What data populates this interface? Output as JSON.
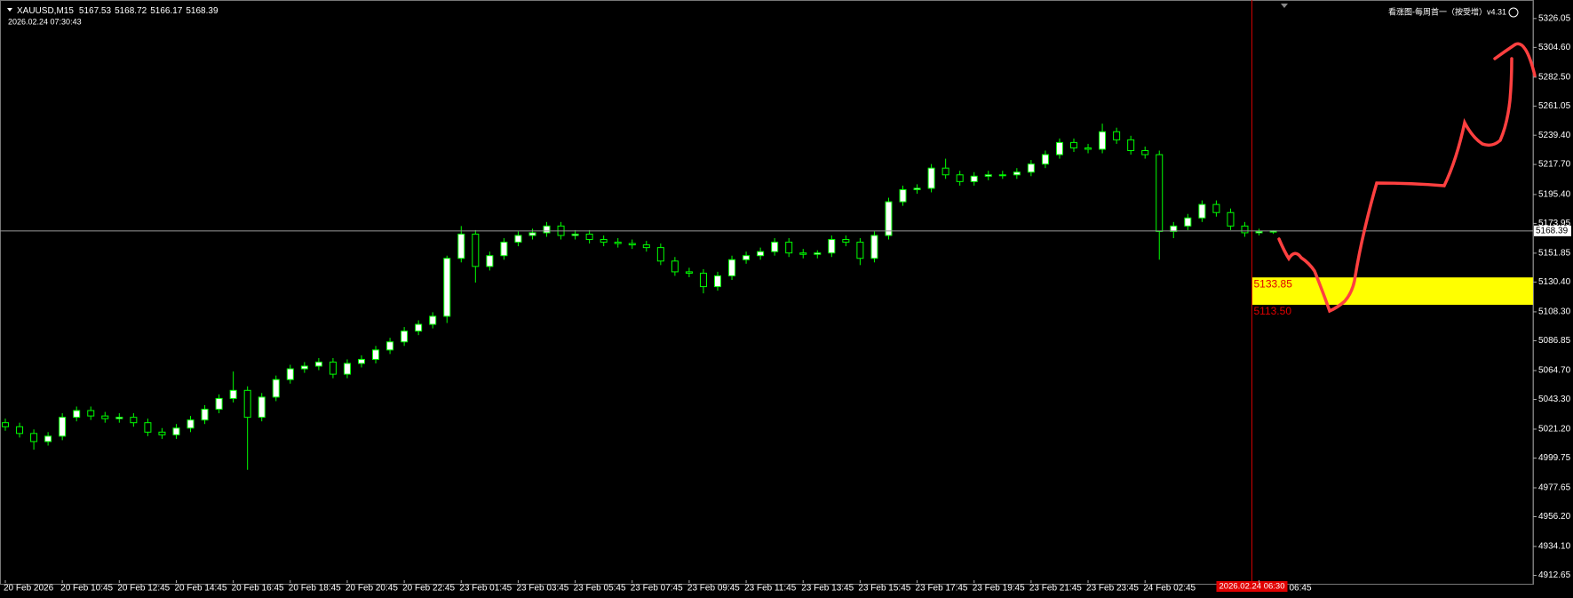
{
  "chart_data": {
    "type": "candlestick",
    "title": "XAUUSD,M15",
    "timestamp": "2026.02.24 07:30:43",
    "indicator": "看涨图-每周首一（按受增）v4.31",
    "up_color": "#ffffff",
    "down_color": "#000000",
    "wick_color": "#00ff00",
    "categories": [
      "20 Feb 2026",
      null,
      null,
      null,
      "20 Feb 10:45",
      null,
      null,
      null,
      "20 Feb 12:45",
      null,
      null,
      null,
      "20 Feb 14:45",
      null,
      null,
      null,
      "20 Feb 16:45",
      null,
      null,
      null,
      "20 Feb 18:45",
      null,
      null,
      null,
      "20 Feb 20:45",
      null,
      null,
      null,
      "20 Feb 22:45",
      null,
      null,
      null,
      "23 Feb 01:45",
      null,
      null,
      null,
      "23 Feb 03:45",
      null,
      null,
      null,
      "23 Feb 05:45",
      null,
      null,
      null,
      "23 Feb 07:45",
      null,
      null,
      null,
      "23 Feb 09:45",
      null,
      null,
      null,
      "23 Feb 11:45",
      null,
      null,
      null,
      "23 Feb 13:45",
      null,
      null,
      null,
      "23 Feb 15:45",
      null,
      null,
      null,
      "23 Feb 17:45",
      null,
      null,
      null,
      "23 Feb 19:45",
      null,
      null,
      null,
      "23 Feb 21:45",
      null,
      null,
      null,
      "23 Feb 23:45",
      null,
      null,
      null,
      "24 Feb 02:45",
      null,
      null,
      null,
      null,
      null,
      null,
      null,
      "06:45",
      null
    ],
    "open": [
      5026,
      5023,
      5018,
      5012,
      5016,
      5030,
      5035,
      5031,
      5029,
      5030,
      5026,
      5019,
      5017,
      5022,
      5028,
      5036,
      5044,
      5050,
      5030,
      5045,
      5058,
      5066,
      5068,
      5071,
      5062,
      5070,
      5073,
      5080,
      5086,
      5094,
      5099,
      5105,
      5148,
      5166,
      5142,
      5150,
      5160,
      5165,
      5167,
      5172,
      5165,
      5166,
      5162,
      5160,
      5159,
      5158,
      5156,
      5146,
      5138,
      5137,
      5127,
      5135,
      5147,
      5150,
      5153,
      5160,
      5152,
      5151,
      5152,
      5162,
      5160,
      5148,
      5165,
      5190,
      5199,
      5200,
      5215,
      5210,
      5205,
      5209,
      5210,
      5210,
      5212,
      5218,
      5225,
      5234,
      5230,
      5229,
      5242,
      5236,
      5228,
      5225,
      5168,
      5172,
      5178,
      5188,
      5182,
      5172,
      5167,
      5167.53
    ],
    "high": [
      5029,
      5026,
      5021,
      5019,
      5033,
      5038,
      5038,
      5034,
      5033,
      5033,
      5029,
      5022,
      5025,
      5031,
      5039,
      5047,
      5064,
      5053,
      5048,
      5061,
      5069,
      5071,
      5074,
      5074,
      5073,
      5076,
      5083,
      5089,
      5097,
      5102,
      5108,
      5150,
      5172,
      5169,
      5153,
      5163,
      5168,
      5170,
      5175,
      5175,
      5169,
      5169,
      5165,
      5163,
      5162,
      5161,
      5159,
      5149,
      5141,
      5140,
      5138,
      5150,
      5153,
      5156,
      5163,
      5163,
      5155,
      5154,
      5165,
      5165,
      5163,
      5168,
      5193,
      5202,
      5203,
      5218,
      5222,
      5213,
      5212,
      5213,
      5213,
      5215,
      5221,
      5228,
      5237,
      5237,
      5233,
      5248,
      5245,
      5239,
      5231,
      5228,
      5175,
      5181,
      5191,
      5191,
      5185,
      5175,
      5170,
      5168.72
    ],
    "low": [
      5020,
      5015,
      5006,
      5009,
      5013,
      5027,
      5028,
      5026,
      5026,
      5023,
      5016,
      5014,
      5014,
      5019,
      5025,
      5033,
      5041,
      4991,
      5027,
      5042,
      5055,
      5063,
      5065,
      5059,
      5059,
      5067,
      5070,
      5077,
      5083,
      5091,
      5096,
      5100,
      5145,
      5130,
      5139,
      5147,
      5157,
      5162,
      5164,
      5162,
      5162,
      5159,
      5157,
      5156,
      5155,
      5153,
      5143,
      5135,
      5134,
      5122,
      5124,
      5132,
      5144,
      5147,
      5150,
      5149,
      5148,
      5148,
      5149,
      5157,
      5143,
      5145,
      5162,
      5187,
      5196,
      5197,
      5207,
      5202,
      5202,
      5206,
      5207,
      5207,
      5209,
      5215,
      5222,
      5227,
      5226,
      5226,
      5233,
      5225,
      5222,
      5147,
      5163,
      5169,
      5175,
      5179,
      5169,
      5164,
      5165,
      5166.17
    ],
    "close": [
      5023,
      5018,
      5012,
      5016,
      5030,
      5035,
      5031,
      5029,
      5030,
      5026,
      5019,
      5017,
      5022,
      5028,
      5036,
      5044,
      5050,
      5030,
      5045,
      5058,
      5066,
      5068,
      5071,
      5062,
      5070,
      5073,
      5080,
      5086,
      5094,
      5099,
      5105,
      5148,
      5166,
      5142,
      5150,
      5160,
      5165,
      5167,
      5172,
      5165,
      5166,
      5162,
      5160,
      5159,
      5158,
      5156,
      5146,
      5138,
      5137,
      5127,
      5135,
      5147,
      5150,
      5153,
      5160,
      5152,
      5151,
      5152,
      5162,
      5160,
      5148,
      5165,
      5190,
      5199,
      5200,
      5215,
      5210,
      5205,
      5209,
      5210,
      5210,
      5212,
      5218,
      5225,
      5234,
      5230,
      5229,
      5242,
      5236,
      5228,
      5225,
      5168,
      5172,
      5178,
      5188,
      5182,
      5172,
      5167,
      5168,
      5168.39
    ],
    "ylim": [
      4909.7,
      5336.5
    ],
    "yticks": [
      5326.05,
      {
        "value": 5304.6,
        "label": "5304.60"
      },
      {
        "value": 5282.5,
        "label": "5282.50"
      },
      5261.05,
      {
        "value": 5239.4,
        "label": "5239.40"
      },
      {
        "value": 5217.7,
        "label": "5217.70"
      },
      {
        "value": 5195.4,
        "label": "5195.40"
      },
      5173.95,
      5151.85,
      {
        "value": 5130.4,
        "label": "5130.40"
      },
      {
        "value": 5108.3,
        "label": "5108.30"
      },
      5086.85,
      {
        "value": 5064.7,
        "label": "5064.70"
      },
      {
        "value": 5043.3,
        "label": "5043.30"
      },
      {
        "value": 5021.2,
        "label": "5021.20"
      },
      4999.75,
      4977.65,
      {
        "value": 4956.2,
        "label": "4956.20"
      },
      {
        "value": 4934.1,
        "label": "4934.10"
      },
      4912.65
    ],
    "zone": {
      "color": "#ffff00",
      "high": 5133.85,
      "low": {
        "value": 5113.5,
        "label": "5113.50"
      }
    },
    "crosshair": "2026.02.24 06:30"
  }
}
